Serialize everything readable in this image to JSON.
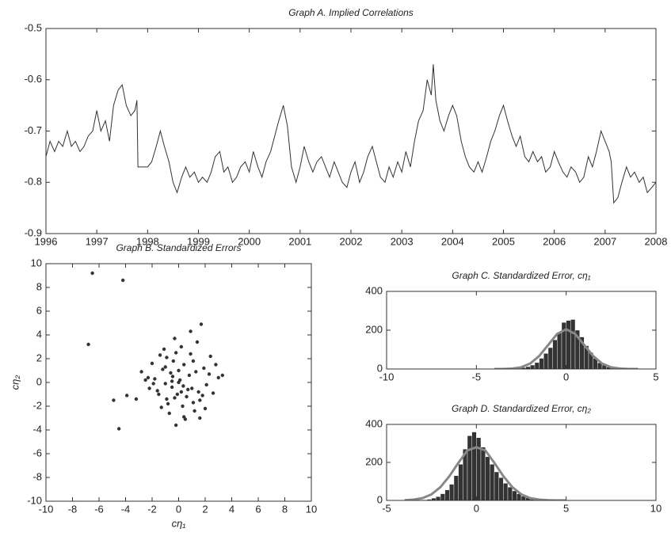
{
  "chart_data": [
    {
      "type": "line",
      "title": "Graph A. Implied Correlations",
      "color": "#333333",
      "xlim": [
        1996,
        2008
      ],
      "xticks": [
        1996,
        1997,
        1998,
        1999,
        2000,
        2001,
        2002,
        2003,
        2004,
        2005,
        2006,
        2007,
        2008
      ],
      "ylim": [
        -0.9,
        -0.5
      ],
      "yticks": [
        -0.9,
        -0.8,
        -0.7,
        -0.6,
        -0.5
      ],
      "x": [
        1996.0,
        1996.08,
        1996.17,
        1996.25,
        1996.33,
        1996.42,
        1996.5,
        1996.58,
        1996.67,
        1996.75,
        1996.83,
        1996.92,
        1997.0,
        1997.08,
        1997.17,
        1997.25,
        1997.33,
        1997.42,
        1997.5,
        1997.58,
        1997.67,
        1997.75,
        1997.79,
        1997.81,
        1997.92,
        1998.0,
        1998.08,
        1998.17,
        1998.25,
        1998.33,
        1998.42,
        1998.5,
        1998.58,
        1998.67,
        1998.75,
        1998.83,
        1998.92,
        1999.0,
        1999.08,
        1999.17,
        1999.25,
        1999.33,
        1999.42,
        1999.5,
        1999.58,
        1999.67,
        1999.75,
        1999.83,
        1999.92,
        2000.0,
        2000.08,
        2000.17,
        2000.25,
        2000.33,
        2000.42,
        2000.5,
        2000.58,
        2000.67,
        2000.75,
        2000.83,
        2000.92,
        2001.0,
        2001.08,
        2001.17,
        2001.25,
        2001.33,
        2001.42,
        2001.5,
        2001.58,
        2001.67,
        2001.75,
        2001.83,
        2001.92,
        2002.0,
        2002.08,
        2002.17,
        2002.25,
        2002.33,
        2002.42,
        2002.5,
        2002.58,
        2002.67,
        2002.75,
        2002.83,
        2002.92,
        2003.0,
        2003.08,
        2003.17,
        2003.25,
        2003.33,
        2003.42,
        2003.5,
        2003.58,
        2003.62,
        2003.67,
        2003.75,
        2003.83,
        2003.92,
        2004.0,
        2004.08,
        2004.17,
        2004.25,
        2004.33,
        2004.42,
        2004.5,
        2004.58,
        2004.67,
        2004.75,
        2004.83,
        2004.92,
        2005.0,
        2005.08,
        2005.17,
        2005.25,
        2005.33,
        2005.42,
        2005.5,
        2005.58,
        2005.67,
        2005.75,
        2005.83,
        2005.92,
        2006.0,
        2006.08,
        2006.17,
        2006.25,
        2006.33,
        2006.42,
        2006.5,
        2006.58,
        2006.67,
        2006.75,
        2006.83,
        2006.92,
        2007.0,
        2007.08,
        2007.12,
        2007.17,
        2007.25,
        2007.33,
        2007.42,
        2007.5,
        2007.58,
        2007.67,
        2007.75,
        2007.83,
        2007.92,
        2008.0
      ],
      "values": [
        -0.75,
        -0.72,
        -0.74,
        -0.72,
        -0.73,
        -0.7,
        -0.73,
        -0.72,
        -0.74,
        -0.73,
        -0.71,
        -0.7,
        -0.66,
        -0.7,
        -0.68,
        -0.72,
        -0.65,
        -0.62,
        -0.61,
        -0.65,
        -0.67,
        -0.66,
        -0.64,
        -0.77,
        -0.77,
        -0.77,
        -0.76,
        -0.73,
        -0.7,
        -0.73,
        -0.76,
        -0.8,
        -0.82,
        -0.79,
        -0.77,
        -0.79,
        -0.78,
        -0.8,
        -0.79,
        -0.8,
        -0.78,
        -0.75,
        -0.74,
        -0.78,
        -0.77,
        -0.8,
        -0.79,
        -0.77,
        -0.76,
        -0.78,
        -0.74,
        -0.77,
        -0.79,
        -0.76,
        -0.74,
        -0.71,
        -0.68,
        -0.65,
        -0.69,
        -0.77,
        -0.8,
        -0.77,
        -0.73,
        -0.76,
        -0.78,
        -0.76,
        -0.75,
        -0.77,
        -0.79,
        -0.76,
        -0.78,
        -0.8,
        -0.81,
        -0.78,
        -0.76,
        -0.8,
        -0.78,
        -0.75,
        -0.73,
        -0.76,
        -0.79,
        -0.8,
        -0.77,
        -0.79,
        -0.76,
        -0.78,
        -0.74,
        -0.77,
        -0.72,
        -0.68,
        -0.66,
        -0.6,
        -0.63,
        -0.57,
        -0.64,
        -0.68,
        -0.7,
        -0.67,
        -0.65,
        -0.67,
        -0.72,
        -0.75,
        -0.77,
        -0.78,
        -0.76,
        -0.78,
        -0.75,
        -0.72,
        -0.7,
        -0.67,
        -0.65,
        -0.68,
        -0.71,
        -0.73,
        -0.71,
        -0.75,
        -0.76,
        -0.74,
        -0.76,
        -0.75,
        -0.78,
        -0.77,
        -0.74,
        -0.76,
        -0.78,
        -0.79,
        -0.77,
        -0.78,
        -0.8,
        -0.79,
        -0.75,
        -0.77,
        -0.74,
        -0.7,
        -0.72,
        -0.74,
        -0.76,
        -0.84,
        -0.83,
        -0.8,
        -0.77,
        -0.79,
        -0.78,
        -0.8,
        -0.79,
        -0.82,
        -0.81,
        -0.8
      ]
    },
    {
      "type": "scatter",
      "title": "Graph B. Standardized Errors",
      "xlabel": "cη₁",
      "ylabel": "cη₂",
      "color": "#333333",
      "xlim": [
        -10,
        10
      ],
      "xticks": [
        -10,
        -8,
        -6,
        -4,
        -2,
        0,
        2,
        4,
        6,
        8,
        10
      ],
      "ylim": [
        -10,
        10
      ],
      "yticks": [
        -10,
        -8,
        -6,
        -4,
        -2,
        0,
        2,
        4,
        6,
        8,
        10
      ],
      "x": [
        0.1,
        -0.5,
        0.8,
        -1.2,
        1.5,
        -0.3,
        0.4,
        -1.8,
        2.1,
        -0.9,
        1.1,
        0.0,
        -0.6,
        0.7,
        -1.5,
        1.9,
        -2.3,
        2.6,
        0.3,
        -0.2,
        1.3,
        -1.0,
        0.6,
        -0.4,
        0.9,
        -1.3,
        1.6,
        -2.0,
        2.3,
        -0.7,
        0.2,
        1.0,
        -1.1,
        0.5,
        -0.8,
        1.4,
        -1.6,
        1.8,
        -2.5,
        3.0,
        0.0,
        -0.1,
        0.35,
        -0.45,
        1.2,
        -1.4,
        2.0,
        -2.8,
        2.8,
        -0.2,
        0.9,
        -0.9,
        1.7,
        -1.9,
        0.4,
        -0.3,
        -3.2,
        3.3,
        1.6,
        -1.0,
        0.2,
        -0.5,
        2.4,
        -2.2,
        1.1,
        -6.5,
        -4.2,
        -6.8,
        -4.9,
        -4.5,
        -3.9
      ],
      "values": [
        0.2,
        -0.4,
        0.6,
        1.1,
        -0.8,
        -1.3,
        1.5,
        0.3,
        -0.2,
        2.1,
        -1.7,
        0.0,
        0.8,
        -0.6,
        -1.0,
        1.2,
        0.4,
        -0.9,
        -2.0,
        2.5,
        0.9,
        -0.1,
        -1.2,
        1.8,
        2.4,
        -2.1,
        -1.5,
        1.6,
        0.7,
        -2.6,
        3.0,
        -0.5,
        2.8,
        -3.1,
        -1.8,
        3.4,
        -0.7,
        -1.1,
        0.2,
        0.4,
        1.0,
        -1.0,
        -0.3,
        0.5,
        -2.4,
        2.3,
        -2.2,
        0.9,
        1.5,
        -3.6,
        4.3,
        -1.4,
        4.9,
        -0.1,
        -2.9,
        3.7,
        -1.4,
        0.6,
        -3.0,
        1.3,
        -0.8,
        0.1,
        2.2,
        -0.5,
        1.8,
        9.2,
        8.6,
        3.2,
        -1.5,
        -3.9,
        -1.1
      ]
    },
    {
      "type": "histogram",
      "title": "Graph C. Standardized Error, cη₁",
      "color": "#333333",
      "xlim": [
        -10,
        5
      ],
      "xticks": [
        -10,
        -5,
        0,
        5
      ],
      "ylim": [
        0,
        400
      ],
      "yticks": [
        0,
        200,
        400
      ],
      "bins": [
        -3,
        -2.75,
        -2.5,
        -2.25,
        -2,
        -1.75,
        -1.5,
        -1.25,
        -1,
        -0.75,
        -0.5,
        -0.25,
        0,
        0.25,
        0.5,
        0.75,
        1,
        1.25,
        1.5,
        1.75,
        2,
        2.25,
        2.5,
        2.75,
        3
      ],
      "values": [
        2,
        4,
        7,
        12,
        20,
        33,
        55,
        80,
        110,
        150,
        185,
        240,
        250,
        255,
        200,
        165,
        120,
        85,
        55,
        32,
        20,
        10,
        5,
        2
      ],
      "fit": {
        "color": "#888888",
        "x": [
          -4,
          -3.5,
          -3,
          -2.5,
          -2,
          -1.5,
          -1,
          -0.5,
          0,
          0.5,
          1,
          1.5,
          2,
          2.5,
          3,
          3.5,
          4
        ],
        "values": [
          0,
          0,
          2,
          9,
          28,
          67,
          124,
          181,
          205,
          181,
          124,
          67,
          28,
          9,
          2,
          0,
          0
        ]
      }
    },
    {
      "type": "histogram",
      "title": "Graph D. Standardized Error, cη₂",
      "color": "#333333",
      "xlim": [
        -5,
        10
      ],
      "xticks": [
        -5,
        0,
        5,
        10
      ],
      "ylim": [
        0,
        400
      ],
      "yticks": [
        0,
        200,
        400
      ],
      "bins": [
        -3,
        -2.75,
        -2.5,
        -2.25,
        -2,
        -1.75,
        -1.5,
        -1.25,
        -1,
        -0.75,
        -0.5,
        -0.25,
        0,
        0.25,
        0.5,
        0.75,
        1,
        1.25,
        1.5,
        1.75,
        2,
        2.25,
        2.5,
        2.75,
        3,
        3.25,
        3.5,
        3.75,
        4
      ],
      "values": [
        3,
        6,
        12,
        20,
        35,
        55,
        85,
        130,
        190,
        270,
        340,
        360,
        330,
        280,
        230,
        190,
        150,
        120,
        90,
        70,
        50,
        35,
        22,
        14,
        9,
        6,
        3,
        2
      ],
      "fit": {
        "color": "#888888",
        "x": [
          -4,
          -3.5,
          -3,
          -2.5,
          -2,
          -1.5,
          -1,
          -0.5,
          0,
          0.5,
          1,
          1.5,
          2,
          2.5,
          3,
          3.5,
          4,
          4.5,
          5
        ],
        "values": [
          1,
          4,
          12,
          32,
          70,
          128,
          198,
          263,
          280,
          263,
          198,
          128,
          70,
          32,
          12,
          4,
          1,
          0,
          0
        ]
      }
    }
  ]
}
